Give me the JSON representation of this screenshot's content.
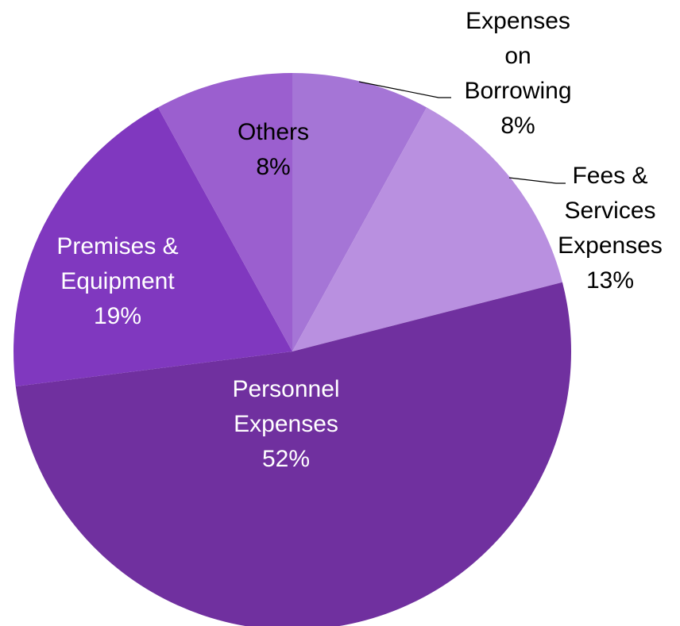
{
  "chart_data": {
    "type": "pie",
    "title": "",
    "start_angle_deg": 0,
    "direction": "clockwise",
    "slices": [
      {
        "key": "borrowing",
        "label_lines": [
          "Expenses",
          "on",
          "Borrowing",
          "8%"
        ],
        "value": 8,
        "color": "#a575d6",
        "label_color": "#000000",
        "label_placement": "outside-right"
      },
      {
        "key": "fees",
        "label_lines": [
          "Fees &",
          "Services",
          "Expenses",
          "13%"
        ],
        "value": 13,
        "color": "#b990e0",
        "label_color": "#000000",
        "label_placement": "outside-right"
      },
      {
        "key": "personnel",
        "label_lines": [
          "Personnel",
          "Expenses",
          "52%"
        ],
        "value": 52,
        "color": "#70309f",
        "label_color": "#ffffff",
        "label_placement": "inside"
      },
      {
        "key": "premises",
        "label_lines": [
          "Premises &",
          "Equipment",
          "19%"
        ],
        "value": 19,
        "color": "#8038bf",
        "label_color": "#ffffff",
        "label_placement": "inside"
      },
      {
        "key": "others",
        "label_lines": [
          "Others",
          "8%"
        ],
        "value": 8,
        "color": "#9b5fcf",
        "label_color": "#000000",
        "label_placement": "inside"
      }
    ]
  }
}
